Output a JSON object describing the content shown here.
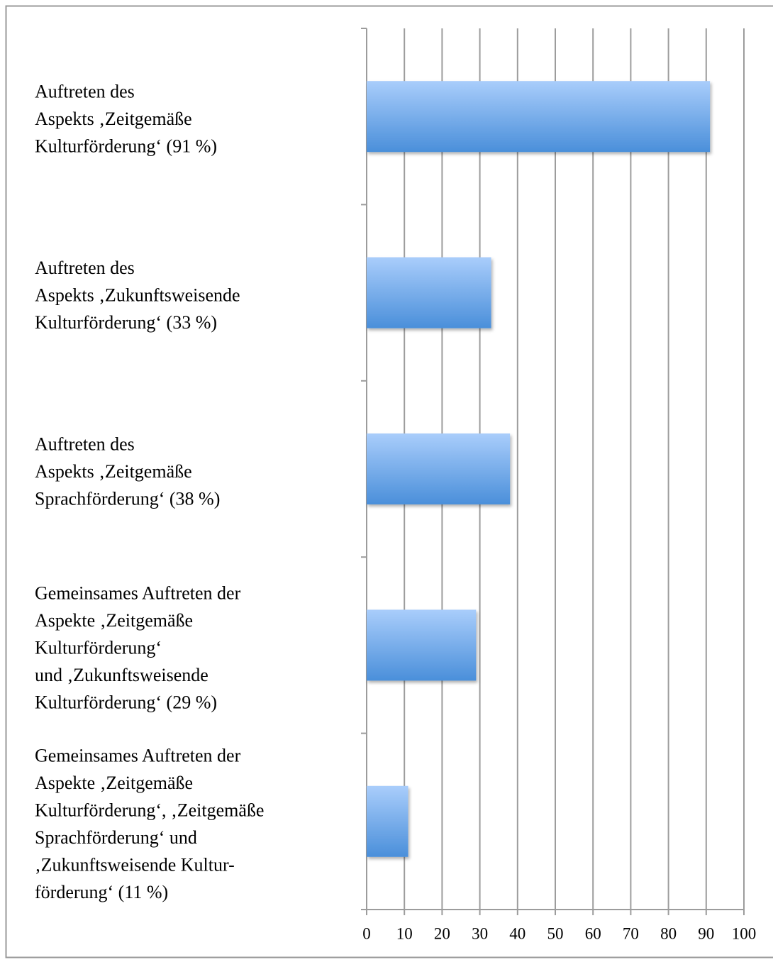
{
  "chart_data": {
    "type": "hbar",
    "categories": [
      [
        "Auftreten des",
        "Aspekts ‚Zeitgemäße",
        "Kulturförderung‘ (91 %)"
      ],
      [
        "Auftreten des",
        "Aspekts ‚Zukunftsweisende",
        "Kulturförderung‘ (33 %)"
      ],
      [
        "Auftreten des",
        "Aspekts ‚Zeitgemäße",
        "Sprachförderung‘ (38 %)"
      ],
      [
        "Gemeinsames Auftreten der",
        "Aspekte ‚Zeitgemäße",
        "Kulturförderung‘",
        "und ‚Zukunftsweisende",
        "Kulturförderung‘ (29 %)"
      ],
      [
        "Gemeinsames Auftreten der",
        "Aspekte ‚Zeitgemäße",
        "Kulturförderung‘, ‚Zeitgemäße",
        "Sprachförderung‘ und",
        "‚Zukunftsweisende Kultur-",
        "förderung‘ (11 %)"
      ]
    ],
    "values": [
      91,
      33,
      38,
      29,
      11
    ],
    "color": [
      "#a9cdfb",
      "#4a8fda"
    ],
    "xlim": [
      0,
      100
    ],
    "xticks": [
      0,
      10,
      20,
      30,
      40,
      50,
      60,
      70,
      80,
      90,
      100
    ],
    "grid": true
  }
}
